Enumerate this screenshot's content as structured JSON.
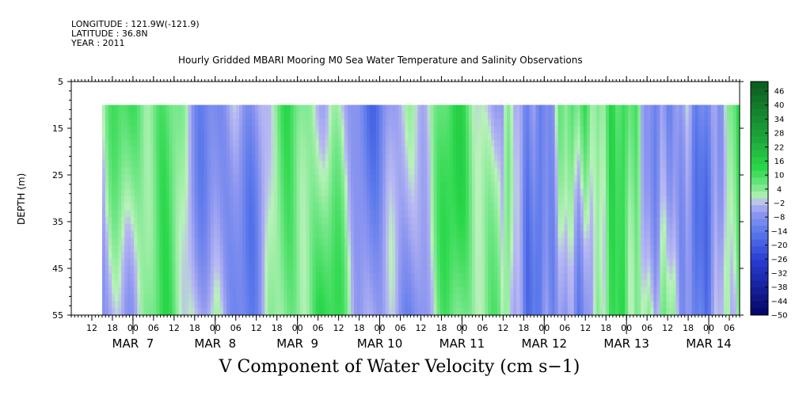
{
  "header": {
    "longitude": "LONGITUDE : 121.9W(-121.9)",
    "latitude": "LATITUDE : 36.8N",
    "year": "YEAR : 2011"
  },
  "title": "Hourly Gridded MBARI Mooring M0 Sea Water Temperature and Salinity Observations",
  "variable_title": "V Component of Water Velocity (cm s−1)",
  "colors": {
    "strong_positive": "#0b5a1e",
    "positive": "#2ad84a",
    "near_zero_positive": "#b8f2b8",
    "near_zero_negative": "#b8b8f2",
    "negative": "#5a78e8",
    "strong_negative": "#06066e"
  },
  "chart_data": {
    "type": "heatmap",
    "title": "Hourly Gridded MBARI Mooring M0 Sea Water Temperature and Salinity Observations",
    "xlabel": "",
    "ylabel": "DEPTH (m)",
    "y_axis": {
      "ticks": [
        5,
        15,
        25,
        35,
        45,
        55
      ],
      "range": [
        55,
        5
      ],
      "inverted": true
    },
    "data_depth_range": [
      10,
      55
    ],
    "x_axis": {
      "hour_ticks": [
        "12",
        "18",
        "00",
        "06",
        "12",
        "18",
        "00",
        "06",
        "12",
        "18",
        "00",
        "06",
        "12",
        "18",
        "00",
        "06",
        "12",
        "18",
        "00",
        "06",
        "12",
        "18",
        "00",
        "06",
        "12",
        "18",
        "00",
        "06",
        "12",
        "18",
        "00",
        "06"
      ],
      "day_labels": [
        "MAR  7",
        "MAR  8",
        "MAR  9",
        "MAR 10",
        "MAR 11",
        "MAR 12",
        "MAR 13",
        "MAR 14"
      ],
      "start": "2011-03-06 06:00",
      "end": "2011-03-14 09:00",
      "data_start": "2011-03-06 15:00"
    },
    "colorbar": {
      "levels": [
        "46",
        "40",
        "34",
        "28",
        "22",
        "16",
        "10",
        "4",
        "−2",
        "−8",
        "−14",
        "−20",
        "−26",
        "−32",
        "−38",
        "−44",
        "−50"
      ],
      "min": -50,
      "max": 52
    },
    "field_description": "alternating positive (green) and negative (blue) bands of V velocity, mostly within ±15 cm/s"
  }
}
